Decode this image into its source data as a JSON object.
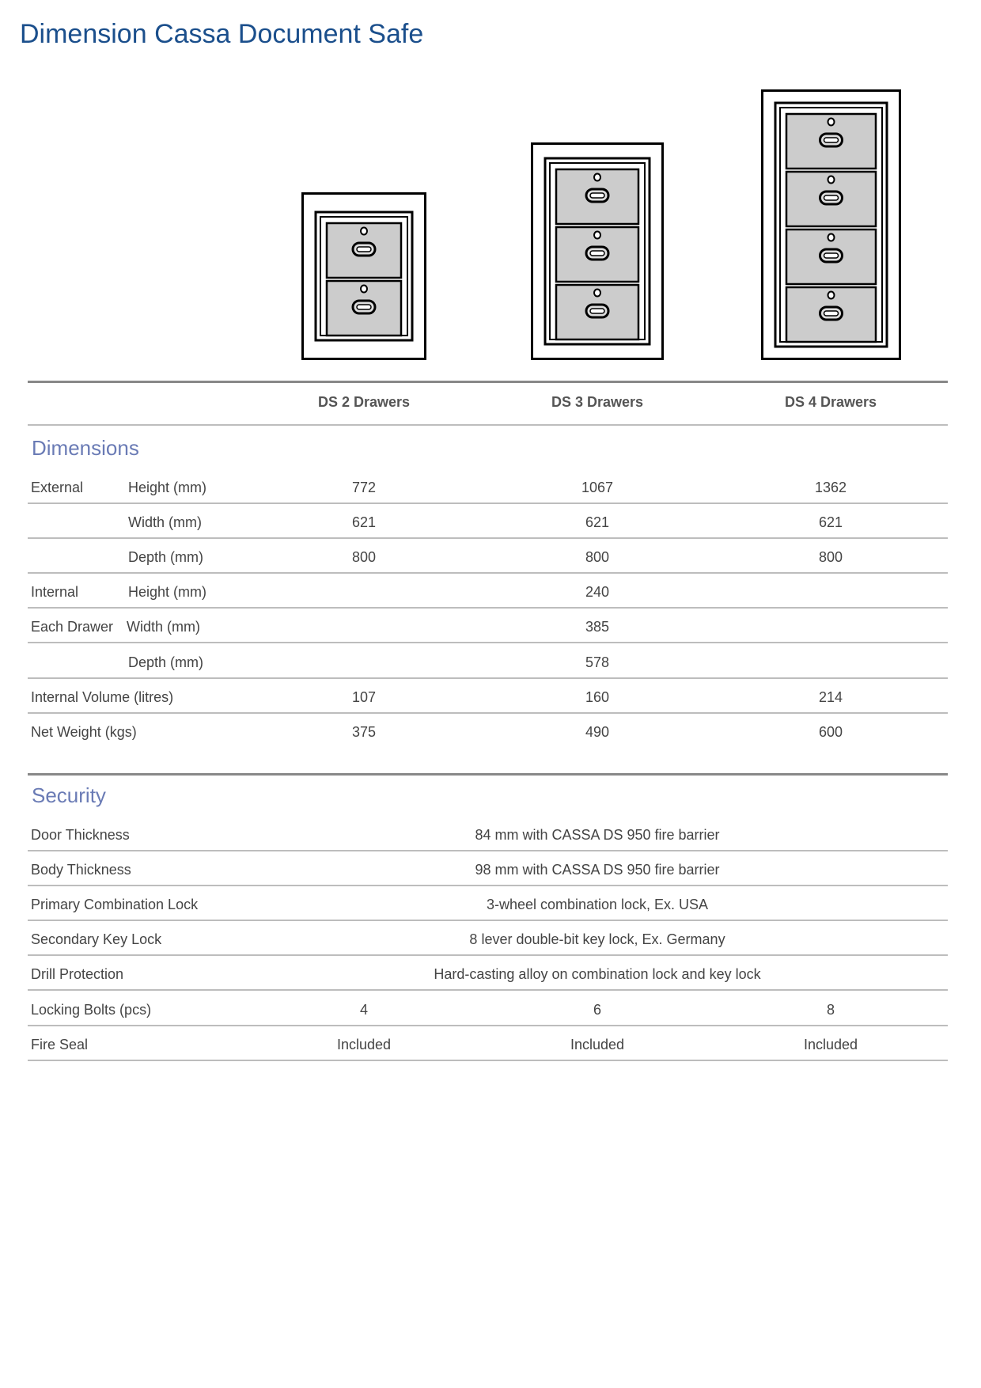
{
  "title": "Dimension Cassa Document Safe",
  "models": [
    {
      "name": "DS 2 Drawers",
      "drawers": 2
    },
    {
      "name": "DS 3 Drawers",
      "drawers": 3
    },
    {
      "name": "DS 4 Drawers",
      "drawers": 4
    }
  ],
  "dimensions": {
    "heading": "Dimensions",
    "rows": [
      {
        "group": "External",
        "label": "Height (mm)",
        "values": [
          "772",
          "1067",
          "1362"
        ]
      },
      {
        "group": "",
        "label": "Width (mm)",
        "values": [
          "621",
          "621",
          "621"
        ]
      },
      {
        "group": "",
        "label": "Depth (mm)",
        "values": [
          "800",
          "800",
          "800"
        ]
      },
      {
        "group": "Internal",
        "label": "Height (mm)",
        "shared": "240"
      },
      {
        "group": "Each Drawer",
        "label": "Width (mm)",
        "shared": "385"
      },
      {
        "group": "",
        "label": "Depth (mm)",
        "shared": "578"
      },
      {
        "group": "Internal Volume (litres)",
        "label": "",
        "values": [
          "107",
          "160",
          "214"
        ]
      },
      {
        "group": "Net Weight (kgs)",
        "label": "",
        "values": [
          "375",
          "490",
          "600"
        ]
      }
    ]
  },
  "security": {
    "heading": "Security",
    "rows": [
      {
        "label": "Door Thickness",
        "shared": "84 mm with CASSA DS 950 fire barrier"
      },
      {
        "label": "Body Thickness",
        "shared": "98 mm with CASSA DS 950 fire barrier"
      },
      {
        "label": "Primary Combination Lock",
        "shared": "3-wheel combination lock, Ex. USA"
      },
      {
        "label": "Secondary Key Lock",
        "shared": "8 lever double-bit key lock, Ex. Germany"
      },
      {
        "label": "Drill Protection",
        "shared": "Hard-casting alloy on combination lock and key lock"
      },
      {
        "label": "Locking Bolts (pcs)",
        "values": [
          "4",
          "6",
          "8"
        ]
      },
      {
        "label": "Fire Seal",
        "values": [
          "Included",
          "Included",
          "Included"
        ]
      }
    ]
  },
  "colors": {
    "title": "#1b4f8c",
    "section": "#6a7bb5",
    "drawer": "#cccccc"
  }
}
